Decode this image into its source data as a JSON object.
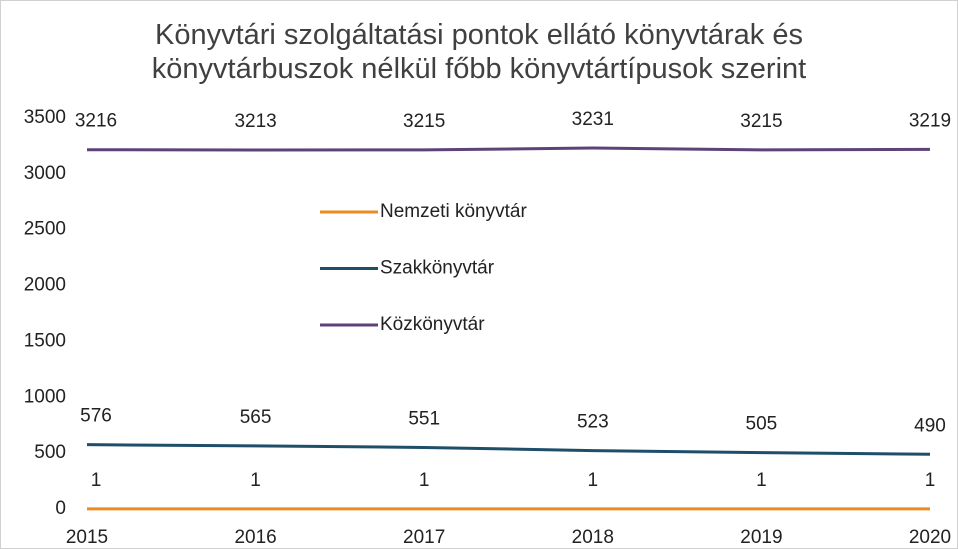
{
  "chart_data": {
    "type": "line",
    "title": "Könyvtári szolgáltatási pontok ellátó könyvtárak és könyvtárbuszok nélkül főbb könyvtártípusok szerint",
    "categories": [
      "2015",
      "2016",
      "2017",
      "2018",
      "2019",
      "2020"
    ],
    "series": [
      {
        "name": "Nemzeti könyvtár",
        "color": "#ee8a22",
        "values": [
          1,
          1,
          1,
          1,
          1,
          1
        ]
      },
      {
        "name": "Szakkönyvtár",
        "color": "#1f4e6b",
        "values": [
          576,
          565,
          551,
          523,
          505,
          490
        ]
      },
      {
        "name": "Közkönyvtár",
        "color": "#5e4379",
        "values": [
          3216,
          3213,
          3215,
          3231,
          3215,
          3219
        ]
      }
    ],
    "ylim": [
      0,
      3500
    ],
    "yticks": [
      0,
      500,
      1000,
      1500,
      2000,
      2500,
      3000,
      3500
    ],
    "grid": false
  }
}
